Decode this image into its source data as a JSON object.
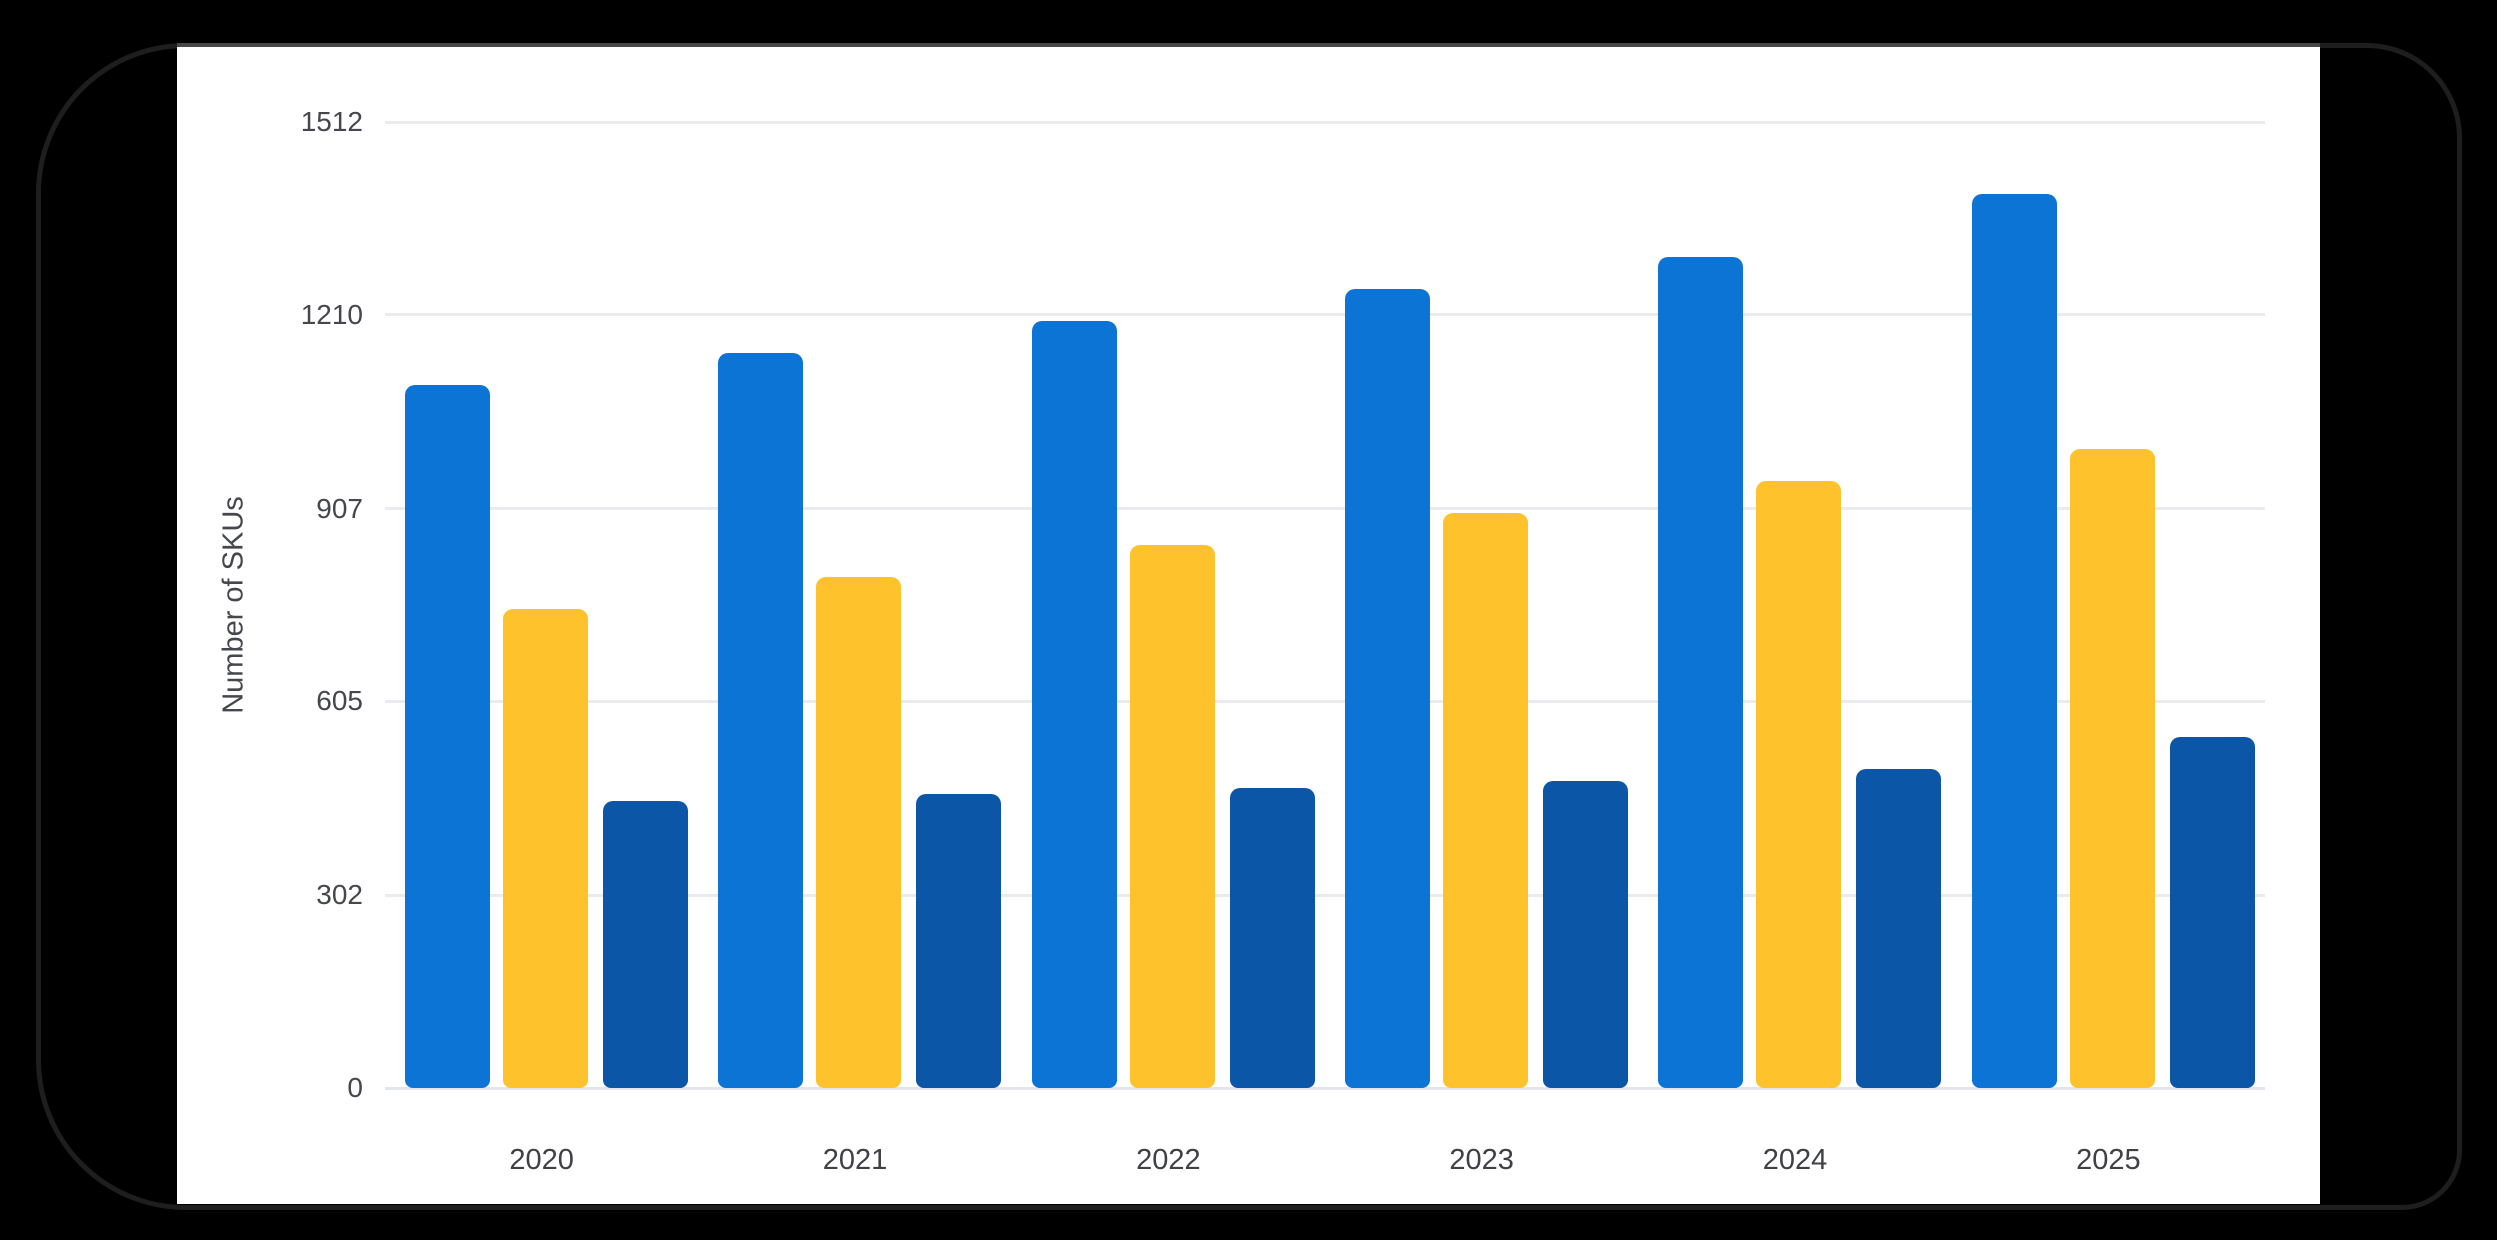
{
  "chart_data": {
    "type": "bar",
    "categories": [
      "2020",
      "2021",
      "2022",
      "2023",
      "2024",
      "2025"
    ],
    "series": [
      {
        "name": "blue",
        "color": "#0B74D4",
        "values": [
          1100,
          1150,
          1200,
          1250,
          1300,
          1400
        ]
      },
      {
        "name": "yellow",
        "color": "#FDC22C",
        "values": [
          750,
          800,
          850,
          900,
          950,
          1000
        ]
      },
      {
        "name": "dark-blue",
        "color": "#0B56A6",
        "values": [
          450,
          460,
          470,
          480,
          500,
          550
        ]
      }
    ],
    "title": "",
    "xlabel": "",
    "ylabel": "Number of SKUs",
    "y_ticks": [
      "0",
      "302",
      "605",
      "907",
      "1210",
      "1512"
    ],
    "ylim": [
      0,
      1512
    ],
    "grid": true,
    "legend_position": "none"
  },
  "colors": {
    "card_background": "#FFFFFF",
    "page_background": "#000000",
    "frame_border": "#1E1E1E",
    "card_top_border": "#474747",
    "gridline": "#E9EBEF",
    "baseline": "#E2E5E9",
    "axis_text": "#45474D",
    "category_text": "#3F4145"
  }
}
